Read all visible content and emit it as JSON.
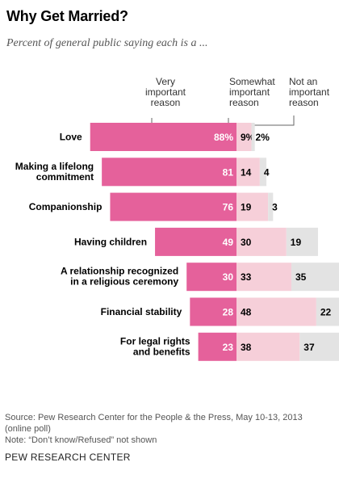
{
  "title": "Why Get Married?",
  "subtitle": "Percent of general public saying each is a ...",
  "chart_data": {
    "type": "bar",
    "stacked": true,
    "categories": [
      [
        "Love"
      ],
      [
        "Making a lifelong",
        "commitment"
      ],
      [
        "Companionship"
      ],
      [
        "Having children"
      ],
      [
        "A relationship recognized",
        "in a religious ceremony"
      ],
      [
        "Financial stability"
      ],
      [
        "For legal rights",
        "and benefits"
      ]
    ],
    "series": [
      {
        "name": [
          "Very",
          "important",
          "reason"
        ],
        "color": "#e5619b",
        "values": [
          88,
          81,
          76,
          49,
          30,
          28,
          23
        ],
        "labels": [
          "88%",
          "81",
          "76",
          "49",
          "30",
          "28",
          "23"
        ]
      },
      {
        "name": [
          "Somewhat",
          "important",
          "reason"
        ],
        "color": "#f6cfd9",
        "values": [
          9,
          14,
          19,
          30,
          33,
          48,
          38
        ],
        "labels": [
          "9%",
          "14",
          "19",
          "30",
          "33",
          "48",
          "38"
        ]
      },
      {
        "name": [
          "Not an",
          "important",
          "reason"
        ],
        "color": "#e3e3e3",
        "values": [
          2,
          4,
          3,
          19,
          35,
          22,
          37
        ],
        "labels": [
          "2%",
          "4",
          "3",
          "19",
          "35",
          "22",
          "37"
        ]
      }
    ]
  },
  "source": [
    "Source: Pew Research Center for the People & the Press, May 10-13, 2013",
    "(online poll)"
  ],
  "note": "Note: “Don’t know/Refused” not shown",
  "footer": "PEW RESEARCH CENTER"
}
